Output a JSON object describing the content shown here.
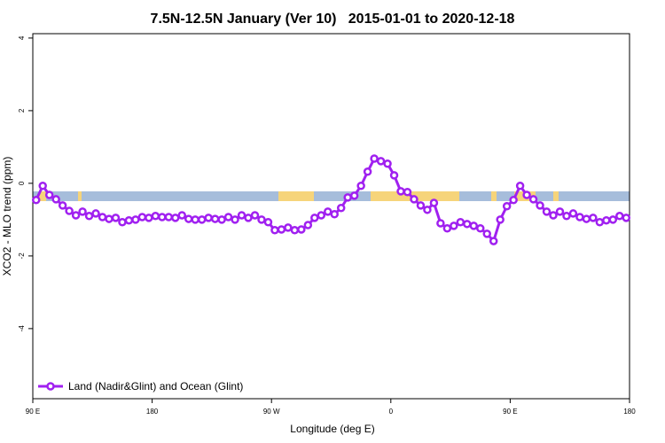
{
  "chart_data": {
    "type": "line",
    "title": "7.5N-12.5N January (Ver 10)   2015-01-01 to 2020-12-18",
    "x_label": "Longitude (deg E)",
    "y_label": "XCO2 - MLO trend (ppm)",
    "xlim": [
      90,
      540
    ],
    "ylim": [
      -5.93,
      4.12
    ],
    "xticks": [
      {
        "value": 90,
        "label": "90 E"
      },
      180,
      {
        "value": 270,
        "label": "90 W"
      },
      {
        "value": 360,
        "label": "0"
      },
      {
        "value": 450,
        "label": "90 E"
      },
      {
        "value": 540,
        "label": "180"
      }
    ],
    "yticks": [
      -4,
      -2,
      0,
      2,
      4
    ],
    "legend": "bottom-left",
    "x": [
      92.5,
      97.5,
      102.5,
      107.5,
      112.5,
      117.5,
      122.5,
      127.5,
      132.5,
      137.5,
      142.5,
      147.5,
      152.5,
      157.5,
      162.5,
      167.5,
      172.5,
      177.5,
      182.5,
      187.5,
      192.5,
      197.5,
      202.5,
      207.5,
      212.5,
      217.5,
      222.5,
      227.5,
      232.5,
      237.5,
      242.5,
      247.5,
      252.5,
      257.5,
      262.5,
      267.5,
      272.5,
      277.5,
      282.5,
      287.5,
      292.5,
      297.5,
      302.5,
      307.5,
      312.5,
      317.5,
      322.5,
      327.5,
      332.5,
      337.5,
      342.5,
      347.5,
      352.5,
      357.5,
      362.5,
      367.5,
      372.5,
      377.5,
      382.5,
      387.5,
      392.5,
      397.5,
      402.5,
      407.5,
      412.5,
      417.5,
      422.5,
      427.5,
      432.5,
      437.5,
      442.5,
      447.5,
      452.5,
      457.5,
      462.5,
      467.5,
      472.5,
      477.5,
      482.5,
      487.5,
      492.5,
      497.5,
      502.5,
      507.5,
      512.5,
      517.5,
      522.5,
      527.5,
      532.5,
      537.5
    ],
    "series": [
      {
        "name": "Land (Nadir&Glint) and Ocean (Glint)",
        "color": "#a020f0",
        "values": [
          -0.46,
          -0.07,
          -0.32,
          -0.44,
          -0.61,
          -0.76,
          -0.88,
          -0.78,
          -0.9,
          -0.83,
          -0.93,
          -0.98,
          -0.95,
          -1.07,
          -1.02,
          -1.0,
          -0.93,
          -0.95,
          -0.9,
          -0.93,
          -0.93,
          -0.95,
          -0.88,
          -0.98,
          -1.0,
          -1.0,
          -0.95,
          -0.98,
          -1.0,
          -0.93,
          -1.0,
          -0.88,
          -0.95,
          -0.88,
          -1.0,
          -1.07,
          -1.29,
          -1.27,
          -1.22,
          -1.29,
          -1.27,
          -1.15,
          -0.95,
          -0.88,
          -0.78,
          -0.85,
          -0.68,
          -0.39,
          -0.34,
          -0.07,
          0.32,
          0.68,
          0.61,
          0.54,
          0.22,
          -0.22,
          -0.24,
          -0.44,
          -0.61,
          -0.73,
          -0.54,
          -1.1,
          -1.24,
          -1.17,
          -1.07,
          -1.12,
          -1.17,
          -1.24,
          -1.39,
          -1.59,
          -1.0,
          -0.63,
          -0.46,
          -0.07,
          -0.32,
          -0.44,
          -0.61,
          -0.78,
          -0.88,
          -0.78,
          -0.9,
          -0.83,
          -0.93,
          -0.98,
          -0.95,
          -1.07,
          -1.02,
          -1.0,
          -0.9,
          -0.95
        ]
      }
    ]
  }
}
